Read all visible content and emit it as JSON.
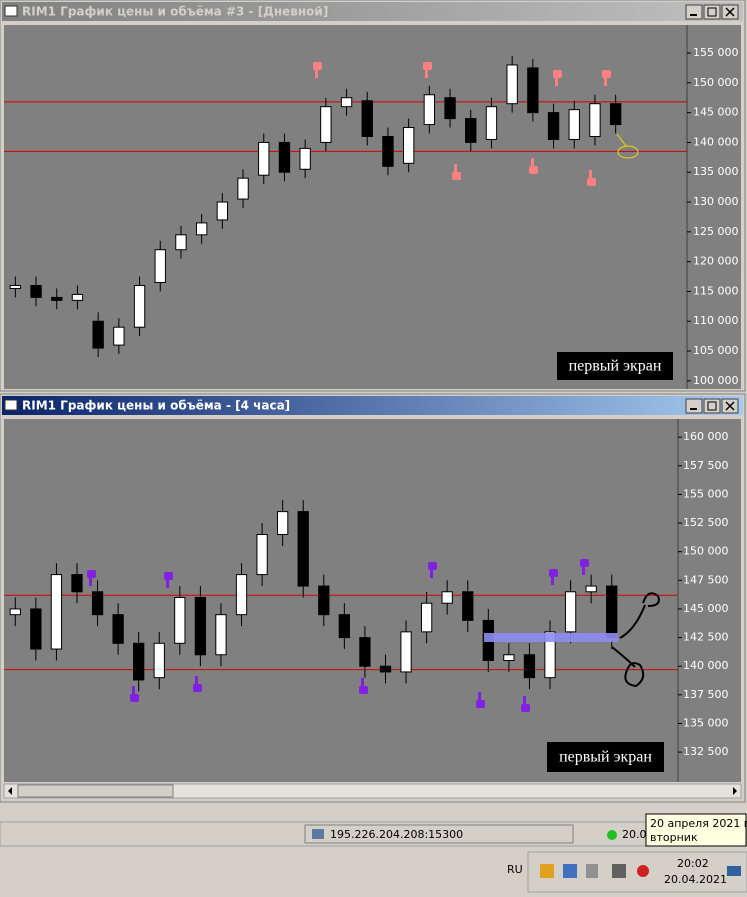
{
  "windows": [
    {
      "title": "RIM1 График цены и объёма #3 - [Дневной]"
    },
    {
      "title": "RIM1 График цены и объёма - [4 часа]"
    }
  ],
  "chart_data": [
    {
      "type": "candlestick",
      "annotation": "первый экран",
      "up_color": "#ffffff",
      "down_color": "#000000",
      "background": "#808080",
      "hlines": [
        146800,
        138500
      ],
      "hline_color": "#d40000",
      "open": [
        115500,
        116000,
        114000,
        113500,
        110000,
        106000,
        109000,
        116500,
        122000,
        124500,
        127000,
        130500,
        134500,
        140000,
        135500,
        140000,
        146000,
        147000,
        141000,
        136500,
        143000,
        147500,
        144000,
        140500,
        146500,
        152500,
        145000,
        140500,
        141000,
        146500
      ],
      "high": [
        117500,
        117500,
        115500,
        116000,
        111500,
        110500,
        117500,
        123500,
        126000,
        128000,
        131500,
        135500,
        141500,
        141500,
        140500,
        147500,
        149000,
        148500,
        142500,
        144000,
        149500,
        149000,
        145500,
        147500,
        154500,
        154000,
        146500,
        147000,
        148000,
        148000
      ],
      "low": [
        114000,
        112500,
        112000,
        112000,
        104000,
        104500,
        107500,
        115000,
        120500,
        123000,
        125500,
        129000,
        133000,
        133500,
        134000,
        138500,
        144500,
        139500,
        134500,
        135000,
        141500,
        142500,
        138500,
        139000,
        145000,
        143500,
        139000,
        139000,
        139500,
        141500
      ],
      "close": [
        116000,
        114000,
        113500,
        114500,
        105500,
        109000,
        116000,
        122000,
        124500,
        126500,
        130000,
        134000,
        140000,
        135000,
        139000,
        146000,
        147500,
        141000,
        136000,
        142500,
        148000,
        144000,
        140000,
        146000,
        153000,
        145000,
        140500,
        145500,
        146500,
        143000
      ],
      "ylim": [
        98800,
        159200
      ],
      "yticks": [
        {
          "value": 155000,
          "label": "155 000"
        },
        {
          "value": 150000,
          "label": "150 000"
        },
        {
          "value": 145000,
          "label": "145 000"
        },
        {
          "value": 140000,
          "label": "140 000"
        },
        {
          "value": 135000,
          "label": "135 000"
        },
        {
          "value": 130000,
          "label": "130 000"
        },
        {
          "value": 125000,
          "label": "125 000"
        },
        {
          "value": 120000,
          "label": "120 000"
        },
        {
          "value": 115000,
          "label": "115 000"
        },
        {
          "value": 110000,
          "label": "110 000"
        },
        {
          "value": 105000,
          "label": "105 000"
        },
        {
          "value": 100000,
          "label": "100 000"
        }
      ]
    },
    {
      "type": "candlestick",
      "annotation": "первый экран",
      "up_color": "#ffffff",
      "down_color": "#000000",
      "background": "#808080",
      "hlines": [
        146200,
        139700
      ],
      "hline_color": "#d40000",
      "open": [
        144500,
        145000,
        141500,
        148000,
        146500,
        144500,
        142000,
        139000,
        142000,
        146000,
        141000,
        144500,
        148000,
        151500,
        153500,
        147000,
        144500,
        142500,
        140000,
        139500,
        143000,
        145500,
        146500,
        144000,
        140500,
        141000,
        139000,
        143000,
        146500,
        147000
      ],
      "high": [
        146000,
        146000,
        149000,
        149000,
        147500,
        145500,
        143000,
        143000,
        147000,
        147000,
        145500,
        149000,
        152500,
        154500,
        154500,
        148000,
        145500,
        143500,
        141000,
        144000,
        146500,
        147500,
        147500,
        145000,
        142000,
        142000,
        144000,
        147500,
        148000,
        148000
      ],
      "low": [
        143500,
        140500,
        140500,
        145500,
        143500,
        141000,
        137800,
        138000,
        141000,
        140000,
        140000,
        143500,
        147000,
        150500,
        146000,
        143500,
        141500,
        139000,
        138500,
        138500,
        142000,
        144500,
        143000,
        139500,
        139500,
        138000,
        138000,
        142000,
        145500,
        141500
      ],
      "close": [
        145000,
        141500,
        148000,
        146500,
        144500,
        142000,
        138800,
        142000,
        146000,
        141000,
        144500,
        148000,
        151500,
        153500,
        147000,
        144500,
        142500,
        140000,
        139500,
        143000,
        145500,
        146500,
        144000,
        140500,
        141000,
        139000,
        143000,
        146500,
        147000,
        142500
      ],
      "ylim": [
        130500,
        161500
      ],
      "yticks": [
        {
          "value": 160000,
          "label": "160 000"
        },
        {
          "value": 157500,
          "label": "157 500"
        },
        {
          "value": 155000,
          "label": "155 000"
        },
        {
          "value": 152500,
          "label": "152 500"
        },
        {
          "value": 150000,
          "label": "150 000"
        },
        {
          "value": 147500,
          "label": "147 500"
        },
        {
          "value": 145000,
          "label": "145 000"
        },
        {
          "value": 142500,
          "label": "142 500"
        },
        {
          "value": 140000,
          "label": "140 000"
        },
        {
          "value": 137500,
          "label": "137 500"
        },
        {
          "value": 135000,
          "label": "135 000"
        },
        {
          "value": 132500,
          "label": "132 500"
        }
      ]
    }
  ],
  "status_bar": {
    "server": "195.226.204.208:15300",
    "clock_partial": "20.0"
  },
  "tooltip": {
    "date": "20 апреля 2021 г.",
    "weekday": "вторник"
  },
  "taskbar": {
    "language": "RU",
    "time": "20:02",
    "date": "20.04.2021"
  }
}
